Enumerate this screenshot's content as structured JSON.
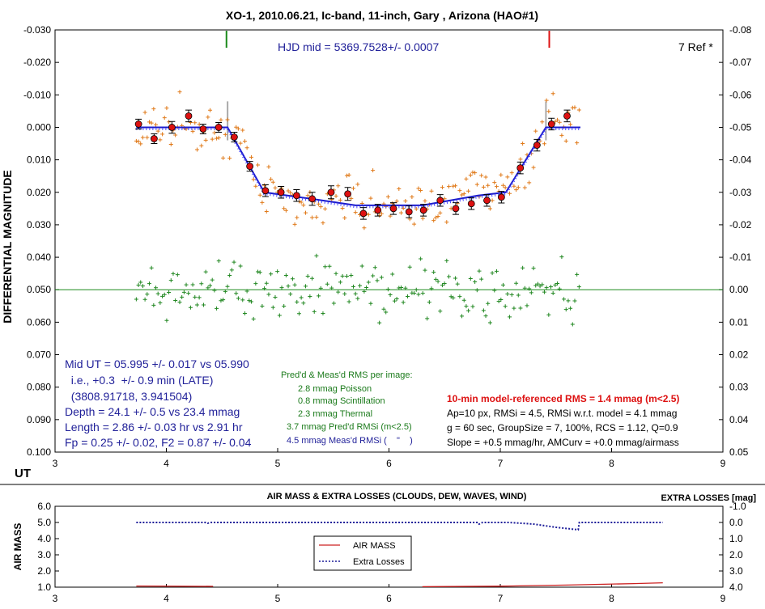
{
  "chart_data": [
    {
      "type": "scatter",
      "title": "XO-1, 2010.06.21, Ic-band, 11-inch, Gary , Arizona (HAO#1)",
      "ylabel": "DIFFERENTIAL MAGNITUDE",
      "xlabel_left": "UT",
      "x_ticks": [
        "3",
        "4",
        "5",
        "6",
        "7",
        "8",
        "9"
      ],
      "xlim": [
        3,
        9
      ],
      "ylim": [
        -0.03,
        0.1
      ],
      "y_ticks": [
        "-0.030",
        "-0.020",
        "-0.010",
        "0.000",
        "0.010",
        "0.020",
        "0.030",
        "0.040",
        "0.050",
        "0.060",
        "0.070",
        "0.080",
        "0.090",
        "0.100"
      ],
      "y2lim": [
        -0.08,
        0.05
      ],
      "y2_ticks": [
        "-0.08",
        "-0.07",
        "-0.06",
        "-0.05",
        "-0.04",
        "-0.03",
        "-0.02",
        "-0.01",
        "0.00",
        "0.01",
        "0.02",
        "0.03",
        "0.04",
        "0.05"
      ],
      "hjd_text": "HJD mid = 5369.7528+/- 0.0007",
      "ref_text": "7 Ref *",
      "ingress_marker_x": 4.54,
      "egress_marker_x": 7.44,
      "contact_markers_x": [
        4.55,
        7.41
      ],
      "model_line": [
        [
          3.73,
          0.0
        ],
        [
          4.55,
          0.0
        ],
        [
          4.88,
          0.02
        ],
        [
          5.3,
          0.022
        ],
        [
          5.7,
          0.024
        ],
        [
          6.3,
          0.024
        ],
        [
          6.8,
          0.021
        ],
        [
          7.05,
          0.02
        ],
        [
          7.41,
          0.0
        ],
        [
          7.72,
          0.0
        ]
      ],
      "binned_points": [
        {
          "x": 3.75,
          "y": -0.001,
          "e": 0.0015
        },
        {
          "x": 3.89,
          "y": 0.0035,
          "e": 0.0015
        },
        {
          "x": 4.05,
          "y": 0.0,
          "e": 0.0018
        },
        {
          "x": 4.2,
          "y": -0.0035,
          "e": 0.0018
        },
        {
          "x": 4.33,
          "y": 0.0005,
          "e": 0.0015
        },
        {
          "x": 4.47,
          "y": 0.0,
          "e": 0.0015
        },
        {
          "x": 4.61,
          "y": 0.003,
          "e": 0.0015
        },
        {
          "x": 4.75,
          "y": 0.012,
          "e": 0.0015
        },
        {
          "x": 4.89,
          "y": 0.0195,
          "e": 0.0018
        },
        {
          "x": 5.03,
          "y": 0.02,
          "e": 0.0018
        },
        {
          "x": 5.17,
          "y": 0.021,
          "e": 0.0018
        },
        {
          "x": 5.31,
          "y": 0.022,
          "e": 0.002
        },
        {
          "x": 5.48,
          "y": 0.02,
          "e": 0.002
        },
        {
          "x": 5.63,
          "y": 0.0205,
          "e": 0.002
        },
        {
          "x": 5.77,
          "y": 0.0265,
          "e": 0.0018
        },
        {
          "x": 5.9,
          "y": 0.0255,
          "e": 0.0018
        },
        {
          "x": 6.04,
          "y": 0.025,
          "e": 0.0018
        },
        {
          "x": 6.18,
          "y": 0.026,
          "e": 0.0018
        },
        {
          "x": 6.31,
          "y": 0.0255,
          "e": 0.0018
        },
        {
          "x": 6.46,
          "y": 0.0225,
          "e": 0.0018
        },
        {
          "x": 6.6,
          "y": 0.025,
          "e": 0.0018
        },
        {
          "x": 6.74,
          "y": 0.0235,
          "e": 0.0018
        },
        {
          "x": 6.88,
          "y": 0.0225,
          "e": 0.0018
        },
        {
          "x": 7.01,
          "y": 0.0215,
          "e": 0.0018
        },
        {
          "x": 7.18,
          "y": 0.0125,
          "e": 0.0018
        },
        {
          "x": 7.33,
          "y": 0.0055,
          "e": 0.0018
        },
        {
          "x": 7.46,
          "y": -0.001,
          "e": 0.0018
        },
        {
          "x": 7.6,
          "y": -0.0035,
          "e": 0.0018
        }
      ],
      "residual_zero_y": 0.05,
      "labels": {
        "left_box": [
          "Mid UT = 05.995 +/- 0.017 vs 05.990",
          "  i.e., +0.3  +/- 0.9 min (LATE)",
          "  (3808.91718, 3.941504)",
          "Depth = 24.1 +/- 0.5 vs 23.4 mmag",
          "Length = 2.86 +/- 0.03 hr vs 2.91 hr",
          "Fp = 0.25 +/- 0.02, F2 = 0.87 +/- 0.04"
        ],
        "rms_box_title": "Pred'd & Meas'd RMS per image:",
        "rms_box_lines": [
          "2.8 mmag Poisson",
          "0.8 mmag Scintillation",
          "2.3 mmag Thermal",
          "3.7 mmag Pred'd  RMSi (m<2.5)",
          "4.5 mmag Meas'd RMSi (    \"    )"
        ],
        "right_box_red": "10-min model-referenced RMS = 1.4 mmag (m<2.5)",
        "right_box_lines": [
          "Ap=10 px, RMSi = 4.5, RMSi w.r.t. model = 4.1 mmag",
          "g = 60 sec, GroupSize = 7, 100%, RCS = 1.12, Q=0.9",
          "Slope = +0.5 mmag/hr, AMCurv = +0.0 mmag/airmass"
        ]
      },
      "colors": {
        "model": "#1c1ccc",
        "raw": "#e07a1a",
        "binned": "#dd1111",
        "residual": "#228822",
        "zero": "#1a8a1a",
        "ingress": "#1a8a1a",
        "egress": "#dd1111",
        "text_blue": "#22229a",
        "text_red": "#dd1111"
      }
    },
    {
      "type": "line",
      "title": "AIR MASS & EXTRA LOSSES (CLOUDS, DEW, WAVES, WIND)",
      "ylabel": "AIR MASS",
      "y2label": "EXTRA LOSSES [mag]",
      "xlim": [
        3,
        9
      ],
      "x_ticks": [
        "3",
        "4",
        "5",
        "6",
        "7",
        "8",
        "9"
      ],
      "ylim": [
        1.0,
        6.0
      ],
      "y_ticks": [
        "6.0",
        "5.0",
        "4.0",
        "3.0",
        "2.0",
        "1.0"
      ],
      "y2lim": [
        -1.0,
        4.0
      ],
      "y2_ticks": [
        "-1.0",
        "0.0",
        "1.0",
        "2.0",
        "3.0",
        "4.0"
      ],
      "series": [
        {
          "name": "AIR MASS",
          "color": "#cc2020",
          "segments": [
            [
              [
                3.73,
                1.07
              ],
              [
                4.42,
                1.05
              ]
            ],
            [
              [
                6.3,
                1.03
              ],
              [
                7.0,
                1.06
              ],
              [
                7.6,
                1.13
              ],
              [
                8.2,
                1.22
              ],
              [
                8.46,
                1.27
              ]
            ]
          ]
        },
        {
          "name": "Extra Losses",
          "color": "#1c1c99",
          "segments": [
            [
              [
                3.73,
                0.0
              ],
              [
                4.35,
                0.0
              ],
              [
                4.37,
                0.05
              ],
              [
                4.4,
                0.0
              ],
              [
                6.8,
                0.0
              ],
              [
                6.81,
                0.1
              ],
              [
                6.84,
                0.0
              ],
              [
                7.08,
                0.0
              ],
              [
                7.3,
                0.1
              ],
              [
                7.5,
                0.3
              ],
              [
                7.7,
                0.45
              ],
              [
                7.71,
                0.0
              ],
              [
                8.46,
                0.0
              ]
            ]
          ]
        }
      ]
    }
  ]
}
